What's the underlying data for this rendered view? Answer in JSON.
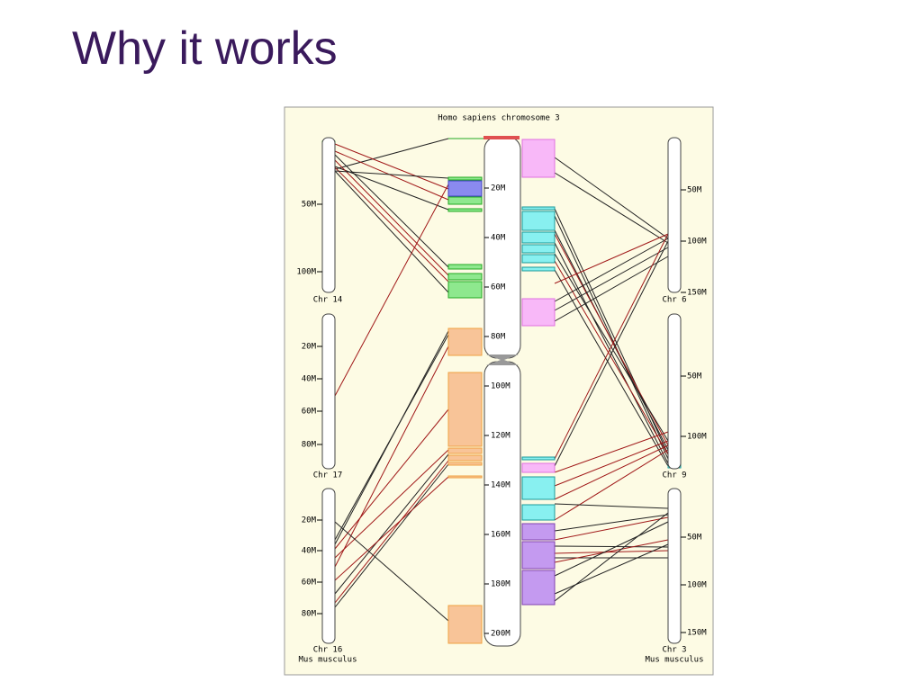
{
  "title": "Why it works",
  "figure": {
    "title": "Homo sapiens chromosome 3",
    "center": {
      "ticks": [
        "20M",
        "40M",
        "60M",
        "80M",
        "100M",
        "120M",
        "140M",
        "160M",
        "180M",
        "200M"
      ]
    },
    "left": [
      {
        "label": "Chr 14",
        "ticks": [
          "50M",
          "100M"
        ]
      },
      {
        "label": "Chr 17",
        "ticks": [
          "20M",
          "40M",
          "60M",
          "80M"
        ]
      },
      {
        "label": "Chr 16",
        "ticks": [
          "20M",
          "40M",
          "60M",
          "80M"
        ]
      }
    ],
    "right": [
      {
        "label": "Chr 6",
        "ticks": [
          "50M",
          "100M",
          "150M"
        ]
      },
      {
        "label": "Chr 9",
        "ticks": [
          "50M",
          "100M"
        ]
      },
      {
        "label": "Chr 3",
        "ticks": [
          "50M",
          "100M",
          "150M"
        ]
      }
    ],
    "species_left": "Mus musculus",
    "species_right": "Mus musculus"
  }
}
